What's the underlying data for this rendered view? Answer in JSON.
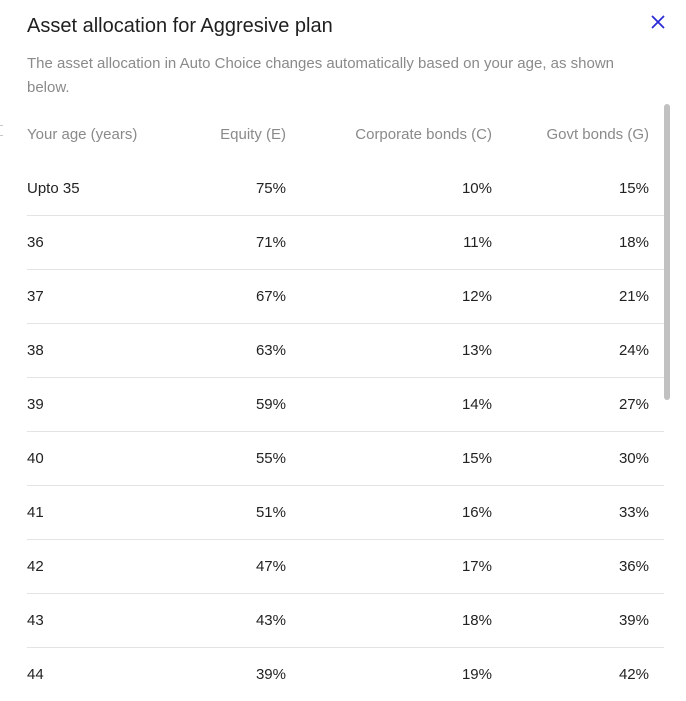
{
  "modal": {
    "title": "Asset allocation for Aggresive plan",
    "description": "The asset allocation in Auto Choice changes automatically based on your age, as shown below.",
    "close_icon": "close-icon",
    "accent_color": "#2b2bd6"
  },
  "table": {
    "headers": {
      "age": "Your age (years)",
      "equity": "Equity (E)",
      "corporate": "Corporate bonds (C)",
      "govt": "Govt bonds (G)"
    },
    "rows": [
      {
        "age": "Upto 35",
        "equity": "75%",
        "corporate": "10%",
        "govt": "15%"
      },
      {
        "age": "36",
        "equity": "71%",
        "corporate": "11%",
        "govt": "18%"
      },
      {
        "age": "37",
        "equity": "67%",
        "corporate": "12%",
        "govt": "21%"
      },
      {
        "age": "38",
        "equity": "63%",
        "corporate": "13%",
        "govt": "24%"
      },
      {
        "age": "39",
        "equity": "59%",
        "corporate": "14%",
        "govt": "27%"
      },
      {
        "age": "40",
        "equity": "55%",
        "corporate": "15%",
        "govt": "30%"
      },
      {
        "age": "41",
        "equity": "51%",
        "corporate": "16%",
        "govt": "33%"
      },
      {
        "age": "42",
        "equity": "47%",
        "corporate": "17%",
        "govt": "36%"
      },
      {
        "age": "43",
        "equity": "43%",
        "corporate": "18%",
        "govt": "39%"
      },
      {
        "age": "44",
        "equity": "39%",
        "corporate": "19%",
        "govt": "42%"
      }
    ]
  }
}
